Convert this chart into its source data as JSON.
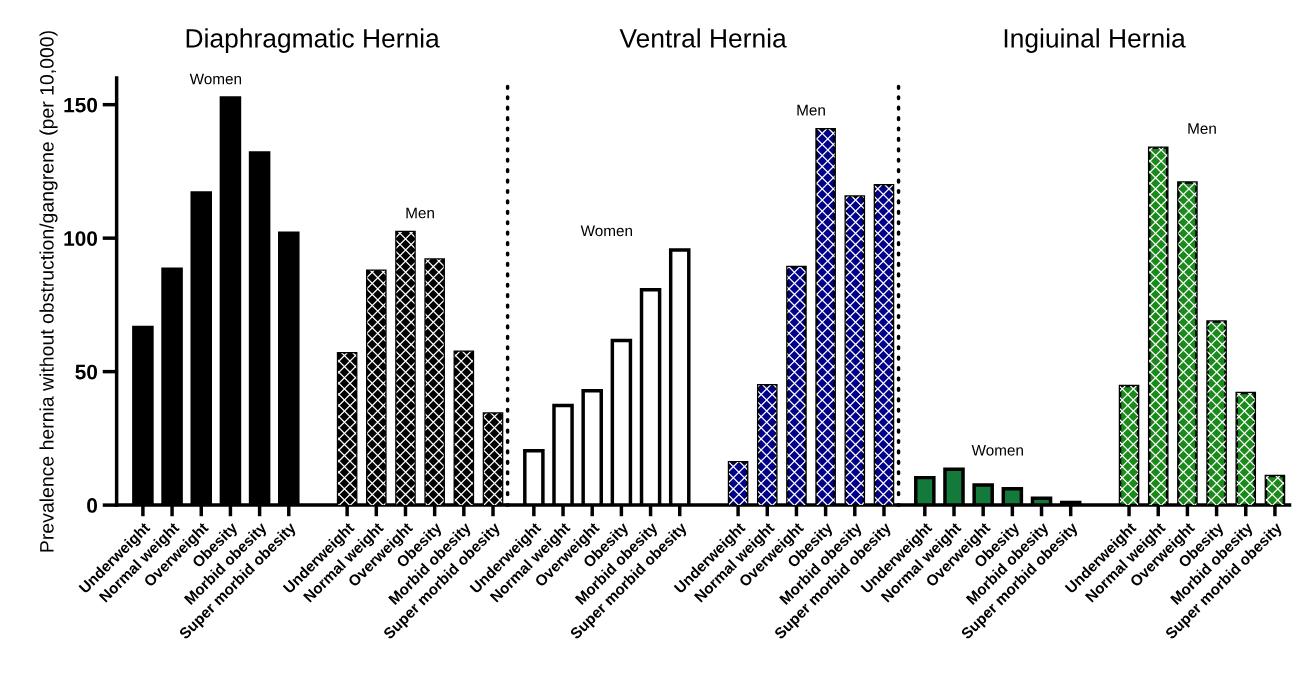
{
  "chart_data": [
    {
      "type": "bar",
      "title": "Diaphragmatic Hernia",
      "ylabel": "Prevalence hernia without obstruction/gangrene (per 10,000)",
      "categories": [
        "Underweight",
        "Normal weight",
        "Overweight",
        "Obesity",
        "Morbid obesity",
        "Super morbid obesity",
        null,
        "Underweight",
        "Normal weight",
        "Overweight",
        "Obesity",
        "Morbid obesity",
        "Super morbid obesity"
      ],
      "ylim": [
        0,
        160
      ],
      "yticks": [
        0,
        50,
        100,
        150
      ],
      "series": [
        {
          "name": "Women",
          "color": "#000000",
          "values": [
            66.5,
            88.4,
            116.9,
            152.5,
            131.9,
            101.8,
            null,
            null,
            null,
            null,
            null,
            null,
            null
          ]
        },
        {
          "name": "Men",
          "color": "#000000",
          "values": [
            null,
            null,
            null,
            null,
            null,
            null,
            null,
            56.9,
            87.8,
            102.3,
            92.0,
            57.4,
            34.3
          ]
        }
      ]
    },
    {
      "type": "bar",
      "title": "Ventral Hernia",
      "categories": [
        "Underweight",
        "Normal weight",
        "Overweight",
        "Obesity",
        "Morbid obesity",
        "Super morbid obesity",
        null,
        "Underweight",
        "Normal weight",
        "Overweight",
        "Obesity",
        "Morbid obesity",
        "Super morbid obesity"
      ],
      "ylim": [
        0,
        160
      ],
      "yticks": [
        0,
        50,
        100,
        150
      ],
      "tick_labels": "x",
      "series": [
        {
          "name": "Women",
          "color": "#ffffff",
          "values": [
            20.4,
            37.3,
            42.8,
            61.7,
            80.7,
            95.6,
            null,
            null,
            null,
            null,
            null,
            null,
            null
          ]
        },
        {
          "name": "Men",
          "color": "#00008b",
          "values": [
            null,
            null,
            null,
            null,
            null,
            null,
            null,
            16.1,
            44.9,
            89.2,
            140.8,
            115.6,
            119.8
          ]
        }
      ]
    },
    {
      "type": "bar",
      "title": "Ingiuinal Hernia",
      "categories": [
        "Underweight",
        "Normal weight",
        "Overweight",
        "Obesity",
        "Morbid obesity",
        "Super morbid obesity",
        null,
        "Underweight",
        "Normal weight",
        "Overweight",
        "Obesity",
        "Morbid obesity",
        "Super morbid obesity"
      ],
      "ylim": [
        0,
        160
      ],
      "yticks": [
        0,
        50,
        100,
        150
      ],
      "tick_labels": "x",
      "series": [
        {
          "name": "Women",
          "color": "#137a3c",
          "values": [
            10.3,
            13.4,
            7.5,
            6.1,
            2.6,
            1.0,
            null,
            null,
            null,
            null,
            null,
            null,
            null
          ]
        },
        {
          "name": "Men",
          "color": "#1a8a1a",
          "values": [
            null,
            null,
            null,
            null,
            null,
            null,
            null,
            44.6,
            133.9,
            120.8,
            68.8,
            42.0,
            10.9
          ]
        }
      ]
    }
  ]
}
